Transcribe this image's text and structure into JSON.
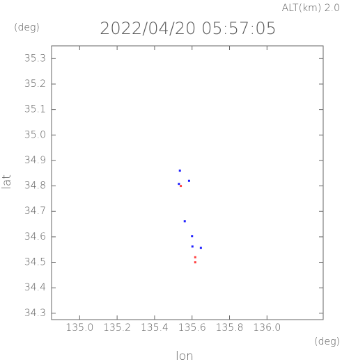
{
  "chart_data": {
    "type": "scatter",
    "title": "2022/04/20 05:57:05",
    "subtitle": "ALT(km) 2.0",
    "y_unit": "(deg)",
    "x_unit": "(deg)",
    "xlabel": "lon",
    "ylabel": "lat",
    "xlim": [
      134.85,
      136.3
    ],
    "ylim": [
      34.275,
      35.35
    ],
    "xticks": [
      {
        "value": 135.0,
        "label": "135.0"
      },
      135.2,
      135.4,
      135.6,
      135.8,
      {
        "value": 136.0,
        "label": "136.0"
      }
    ],
    "yticks": [
      34.3,
      34.4,
      34.5,
      34.6,
      34.7,
      34.8,
      34.9,
      {
        "value": 35.0,
        "label": "35.0"
      },
      35.1,
      35.2,
      35.3
    ],
    "series": [
      {
        "color": "#2020ff",
        "x": [
          135.535,
          135.53,
          135.584,
          135.561,
          135.6,
          135.602,
          135.647
        ],
        "y": [
          34.86,
          34.808,
          34.82,
          34.661,
          34.603,
          34.562,
          34.557
        ]
      },
      {
        "color": "#ff4040",
        "x": [
          135.54,
          135.617,
          135.617
        ],
        "y": [
          34.8,
          34.52,
          34.5
        ]
      }
    ]
  }
}
